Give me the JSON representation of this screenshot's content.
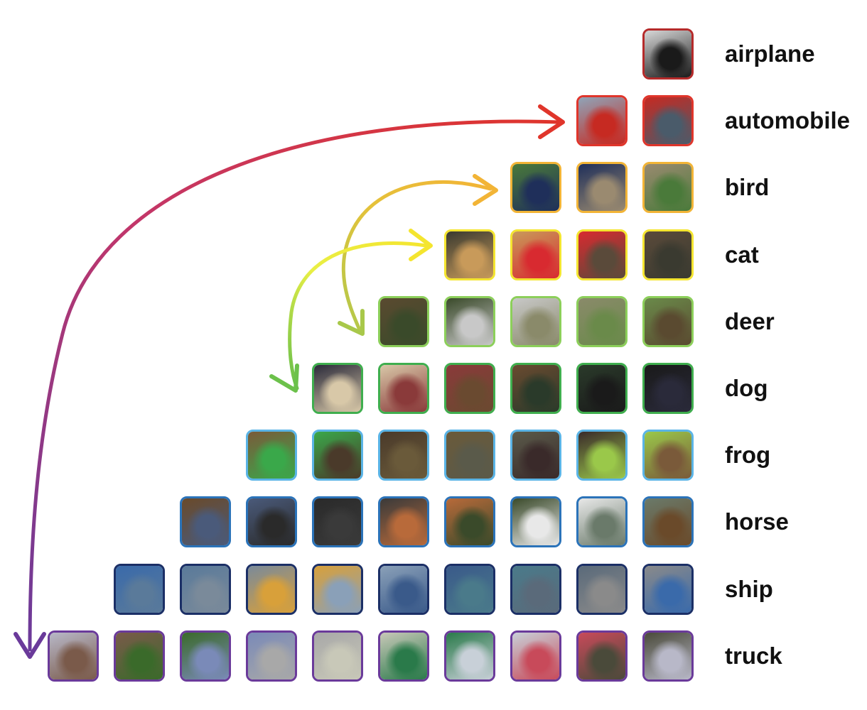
{
  "classes": [
    {
      "label": "airplane",
      "count": 1,
      "border": "#b52a2a",
      "tones": [
        "#d8d8d8",
        "#1a1a1a"
      ]
    },
    {
      "label": "automobile",
      "count": 2,
      "border": "#e0352b",
      "tones": [
        "#8fa4b8",
        "#c62a22",
        "#4a5b6a"
      ]
    },
    {
      "label": "bird",
      "count": 3,
      "border": "#f2b436",
      "tones": [
        "#4a7a3a",
        "#1f2f5a",
        "#9a8a70"
      ]
    },
    {
      "label": "cat",
      "count": 4,
      "border": "#f4e52f",
      "tones": [
        "#3a3a30",
        "#c89a5a",
        "#d82a30",
        "#5a4a3a"
      ]
    },
    {
      "label": "deer",
      "count": 5,
      "border": "#8ccf5a",
      "tones": [
        "#5a4a30",
        "#3a4a2a",
        "#c8c8c8",
        "#8a8a6a",
        "#6a8a4a"
      ]
    },
    {
      "label": "dog",
      "count": 6,
      "border": "#3fae4e",
      "tones": [
        "#2a2a3a",
        "#d8c8a8",
        "#8a3a3a",
        "#6a4a30",
        "#2a3a2a",
        "#1a1a1a"
      ]
    },
    {
      "label": "frog",
      "count": 7,
      "border": "#5ab4e6",
      "tones": [
        "#7a5a3a",
        "#3aa84a",
        "#4a3a2a",
        "#6a5a3a",
        "#5a5a4a",
        "#3a2a2a",
        "#9ac84a"
      ]
    },
    {
      "label": "horse",
      "count": 8,
      "border": "#2b73b9",
      "tones": [
        "#6a4a2a",
        "#4a5a7a",
        "#2a2a2a",
        "#3a3a3a",
        "#b86a3a",
        "#3a4a2a",
        "#e8e8e8",
        "#6a7a6a"
      ]
    },
    {
      "label": "ship",
      "count": 9,
      "border": "#1b2f66",
      "tones": [
        "#3a6aaa",
        "#5a7a9a",
        "#7a8a9a",
        "#d8a03a",
        "#8aa0b8",
        "#3a5a8a",
        "#4a7a8a",
        "#5a6a7a",
        "#8a8a8a"
      ]
    },
    {
      "label": "truck",
      "count": 10,
      "border": "#6a3a9a",
      "tones": [
        "#b8b8c8",
        "#7a5a4a",
        "#3a6a2a",
        "#7a8ab8",
        "#a8a8a8",
        "#c8c8b8",
        "#2a7a4a",
        "#c8d0d8",
        "#c84a5a",
        "#4a4a3a"
      ]
    }
  ],
  "gradient": [
    "#e0352b",
    "#c2366a",
    "#6a3a9a"
  ]
}
